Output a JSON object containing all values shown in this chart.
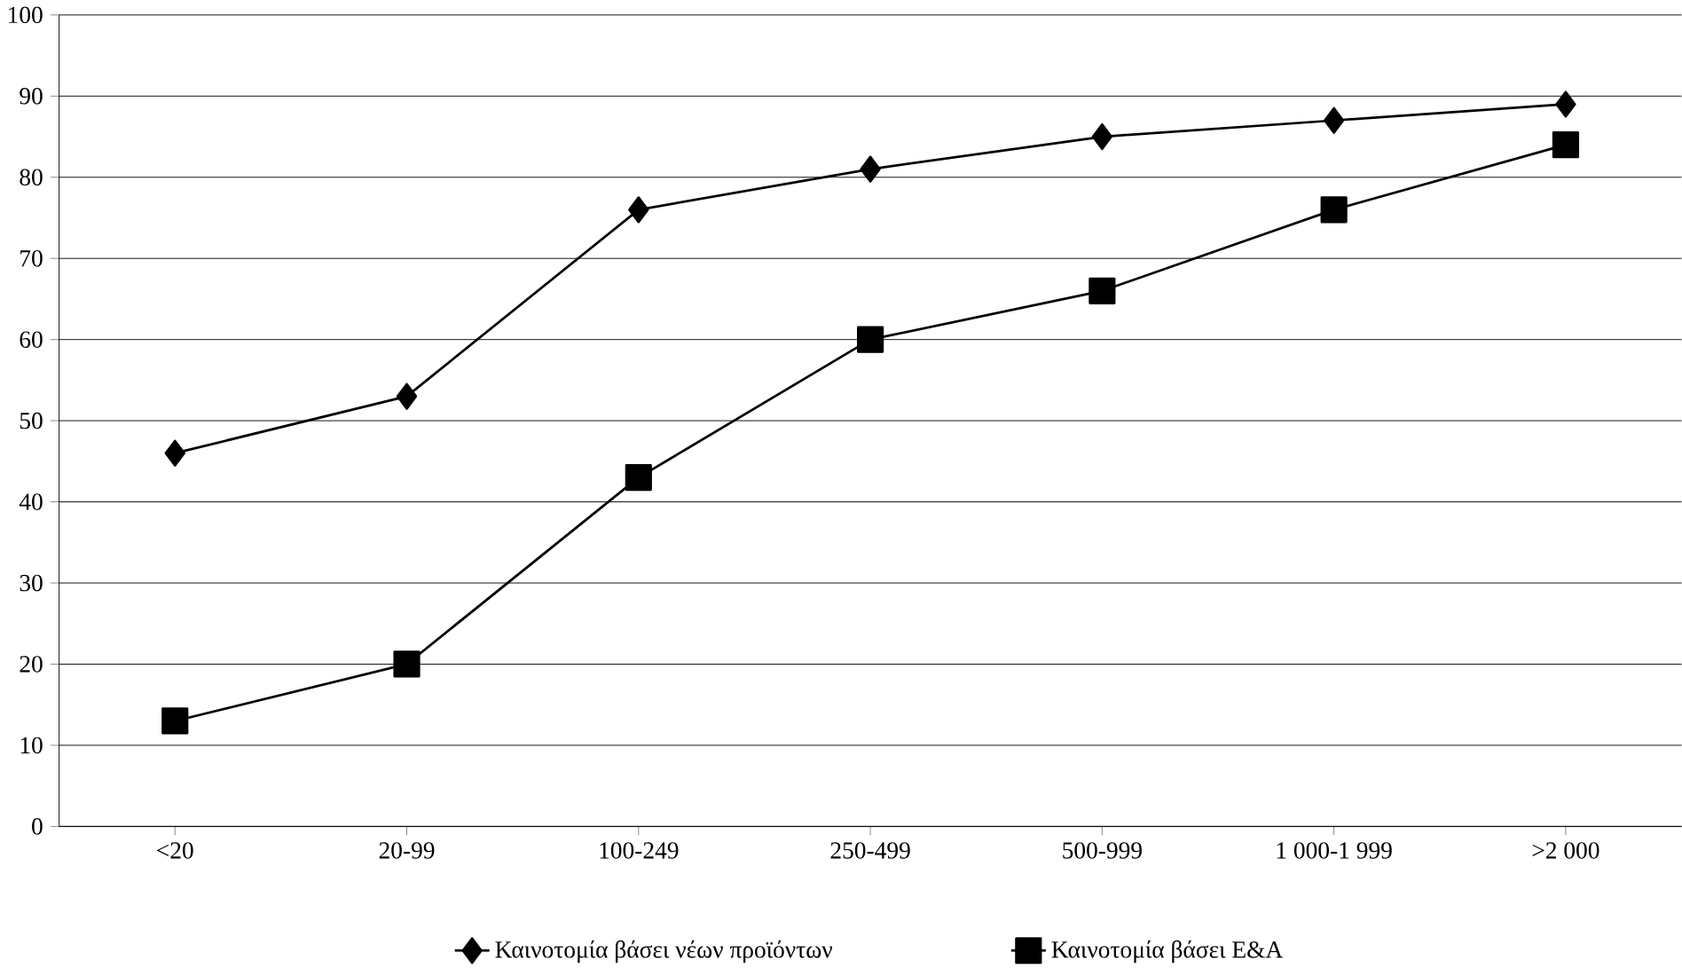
{
  "chart_data": {
    "type": "line",
    "categories": [
      "<20",
      "20-99",
      "100-249",
      "250-499",
      "500-999",
      "1 000-1 999",
      ">2 000"
    ],
    "series": [
      {
        "name": "Καινοτομία βάσει νέων προϊόντων",
        "color": "#000000",
        "marker": "diamond",
        "values": [
          46,
          53,
          76,
          81,
          85,
          87,
          89
        ]
      },
      {
        "name": "Καινοτομία βάσει Ε&Α",
        "color": "#000000",
        "marker": "square",
        "values": [
          13,
          20,
          43,
          60,
          66,
          76,
          84
        ]
      }
    ],
    "ylim": [
      0,
      100
    ],
    "yticks": [
      0,
      10,
      20,
      30,
      40,
      50,
      60,
      70,
      80,
      90,
      100
    ],
    "grid": "y",
    "legend": "bottom",
    "line_style": "solid"
  }
}
